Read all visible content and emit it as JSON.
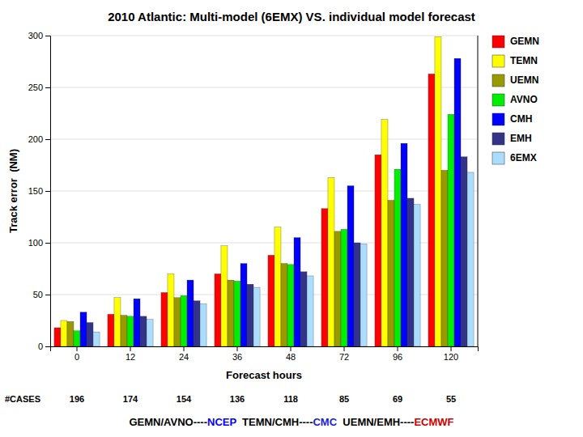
{
  "chart_data": {
    "type": "bar",
    "title": "2010 Atlantic: Multi-model (6EMX) VS. individual model forecast",
    "x_label": "Forecast hours",
    "y_label": "Track error  (NM)",
    "categories": [
      "0",
      "12",
      "24",
      "36",
      "48",
      "72",
      "96",
      "120"
    ],
    "series": [
      {
        "name": "GEMN",
        "color": "#FF0000",
        "values": [
          18,
          31,
          52,
          70,
          88,
          133,
          185,
          263
        ]
      },
      {
        "name": "TEMN",
        "color": "#FFFF00",
        "values": [
          25,
          47,
          70,
          97,
          115,
          163,
          219,
          299
        ]
      },
      {
        "name": "UEMN",
        "color": "#999900",
        "values": [
          24,
          30,
          47,
          64,
          80,
          111,
          141,
          170
        ]
      },
      {
        "name": "AVNO",
        "color": "#00EE00",
        "values": [
          15,
          29,
          49,
          63,
          79,
          113,
          171,
          224
        ]
      },
      {
        "name": "CMH",
        "color": "#0000FF",
        "values": [
          33,
          46,
          64,
          80,
          105,
          155,
          196,
          278
        ]
      },
      {
        "name": "EMH",
        "color": "#333388",
        "values": [
          23,
          29,
          44,
          60,
          72,
          100,
          143,
          183
        ]
      },
      {
        "name": "6EMX",
        "color": "#AADDFF",
        "values": [
          14,
          26,
          41,
          57,
          68,
          99,
          137,
          168
        ]
      }
    ],
    "cases": {
      "label": "#CASES",
      "values": [
        196,
        174,
        154,
        136,
        118,
        85,
        69,
        55
      ]
    },
    "annotations": [
      {
        "text": "GEMN/AVNO----",
        "color": "#000000"
      },
      {
        "text": "NCEP",
        "color": "#0000FF"
      },
      {
        "text": "  TEMN/CMH----",
        "color": "#000000"
      },
      {
        "text": "CMC",
        "color": "#2222CC"
      },
      {
        "text": "  UEMN/EMH----",
        "color": "#000000"
      },
      {
        "text": "ECMWF",
        "color": "#CC0000"
      }
    ],
    "ylim": [
      0,
      300
    ],
    "yticks": [
      0,
      50,
      100,
      150,
      200,
      250,
      300
    ],
    "grid": true,
    "legend": "right"
  }
}
